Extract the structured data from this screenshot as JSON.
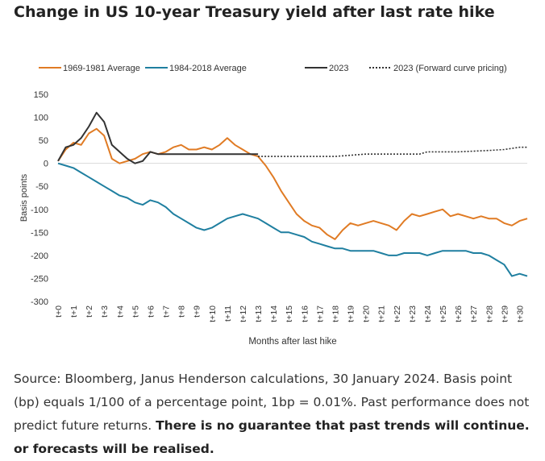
{
  "chart_data": {
    "type": "line",
    "title": "Change in US 10-year Treasury yield after last rate hike",
    "xlabel": "Months after last hike",
    "ylabel": "Basis points",
    "ylim": [
      -300,
      150
    ],
    "yticks": [
      150,
      100,
      50,
      0,
      -50,
      -100,
      -150,
      -200,
      -250,
      -300
    ],
    "x_tick_labels": [
      "t+0",
      "t+1",
      "t+2",
      "t+3",
      "t+4",
      "t+5",
      "t+6",
      "t+7",
      "t+8",
      "t+9",
      "t+10",
      "t+11",
      "t+12",
      "t+13",
      "t+14",
      "t+15",
      "t+16",
      "t+17",
      "t+18",
      "t+19",
      "t+20",
      "t+21",
      "t+22",
      "t+23",
      "t+24",
      "t+25",
      "t+26",
      "t+27",
      "t+28",
      "t+29",
      "t+30"
    ],
    "x_range": [
      0,
      30.5
    ],
    "legend_position": "top",
    "series": [
      {
        "name": "1969-1981 Average",
        "color": "#e07b24",
        "style": "solid",
        "x": [
          0,
          0.5,
          1,
          1.5,
          2,
          2.5,
          3,
          3.5,
          4,
          4.5,
          5,
          5.5,
          6,
          6.5,
          7,
          7.5,
          8,
          8.5,
          9,
          9.5,
          10,
          10.5,
          11,
          11.5,
          12,
          12.5,
          13,
          13.5,
          14,
          14.5,
          15,
          15.5,
          16,
          16.5,
          17,
          17.5,
          18,
          18.5,
          19,
          19.5,
          20,
          20.5,
          21,
          21.5,
          22,
          22.5,
          23,
          23.5,
          24,
          24.5,
          25,
          25.5,
          26,
          26.5,
          27,
          27.5,
          28,
          28.5,
          29,
          29.5,
          30,
          30.5
        ],
        "y": [
          5,
          30,
          45,
          40,
          65,
          75,
          60,
          10,
          0,
          5,
          10,
          20,
          25,
          20,
          25,
          35,
          40,
          30,
          30,
          35,
          30,
          40,
          55,
          40,
          30,
          20,
          15,
          -5,
          -30,
          -60,
          -85,
          -110,
          -125,
          -135,
          -140,
          -155,
          -165,
          -145,
          -130,
          -135,
          -130,
          -125,
          -130,
          -135,
          -145,
          -125,
          -110,
          -115,
          -110,
          -105,
          -100,
          -115,
          -110,
          -115,
          -120,
          -115,
          -120,
          -120,
          -130,
          -135,
          -125,
          -120
        ]
      },
      {
        "name": "1984-2018 Average",
        "color": "#1f7fa0",
        "style": "solid",
        "x": [
          0,
          0.5,
          1,
          1.5,
          2,
          2.5,
          3,
          3.5,
          4,
          4.5,
          5,
          5.5,
          6,
          6.5,
          7,
          7.5,
          8,
          8.5,
          9,
          9.5,
          10,
          10.5,
          11,
          11.5,
          12,
          12.5,
          13,
          13.5,
          14,
          14.5,
          15,
          15.5,
          16,
          16.5,
          17,
          17.5,
          18,
          18.5,
          19,
          19.5,
          20,
          20.5,
          21,
          21.5,
          22,
          22.5,
          23,
          23.5,
          24,
          24.5,
          25,
          25.5,
          26,
          26.5,
          27,
          27.5,
          28,
          28.5,
          29,
          29.5,
          30,
          30.5
        ],
        "y": [
          0,
          -5,
          -10,
          -20,
          -30,
          -40,
          -50,
          -60,
          -70,
          -75,
          -85,
          -90,
          -80,
          -85,
          -95,
          -110,
          -120,
          -130,
          -140,
          -145,
          -140,
          -130,
          -120,
          -115,
          -110,
          -115,
          -120,
          -130,
          -140,
          -150,
          -150,
          -155,
          -160,
          -170,
          -175,
          -180,
          -185,
          -185,
          -190,
          -190,
          -190,
          -190,
          -195,
          -200,
          -200,
          -195,
          -195,
          -195,
          -200,
          -195,
          -190,
          -190,
          -190,
          -190,
          -195,
          -195,
          -200,
          -210,
          -220,
          -245,
          -240,
          -245
        ]
      },
      {
        "name": "2023",
        "color": "#333333",
        "style": "solid",
        "x": [
          0,
          0.5,
          1,
          1.5,
          2,
          2.5,
          3,
          3.5,
          4,
          4.5,
          5,
          5.5,
          6,
          6.5,
          7,
          7.5,
          8,
          8.5,
          9,
          9.5,
          10,
          10.5,
          11,
          11.5,
          12,
          12.5,
          13
        ],
        "y": [
          5,
          35,
          40,
          55,
          80,
          110,
          90,
          40,
          25,
          10,
          0,
          5,
          25,
          20,
          20,
          20,
          20,
          20,
          20,
          20,
          20,
          20,
          20,
          20,
          20,
          20,
          20
        ]
      },
      {
        "name": "2023 (Forward curve pricing)",
        "color": "#333333",
        "style": "dotted",
        "x": [
          13,
          15,
          17,
          18,
          20,
          22,
          23,
          23.5,
          24,
          26,
          28,
          29,
          30,
          30.5
        ],
        "y": [
          15,
          15,
          15,
          15,
          20,
          20,
          20,
          20,
          25,
          25,
          28,
          30,
          35,
          35
        ]
      }
    ]
  },
  "source": {
    "text": "Source: Bloomberg, Janus Henderson calculations, 30 January 2024. Basis point (bp) equals 1/100 of a percentage point, 1bp = 0.01%. Past performance does not predict future returns.",
    "bold_text": "There is no guarantee that past trends will continue. or forecasts will be realised."
  }
}
